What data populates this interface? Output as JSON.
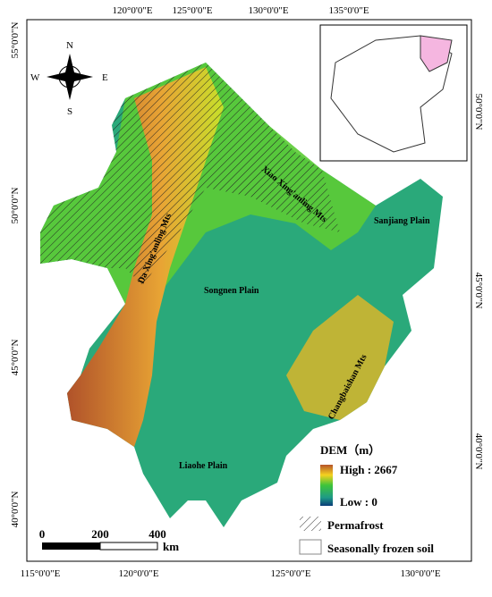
{
  "map": {
    "top_lon_labels": [
      "120°0'0\"E",
      "125°0'0\"E",
      "130°0'0\"E",
      "135°0'0\"E"
    ],
    "bottom_lon_labels": [
      "115°0'0\"E",
      "120°0'0\"E",
      "125°0'0\"E",
      "130°0'0\"E"
    ],
    "left_lat_labels": [
      "55°0'0\"N",
      "50°0'0\"N",
      "45°0'0\"N",
      "40°0'0\"N"
    ],
    "right_lat_labels": [
      "50°0'0\"N",
      "45°0'0\"N",
      "40°0'0\"N"
    ],
    "compass": {
      "n": "N",
      "s": "S",
      "e": "E",
      "w": "W"
    },
    "regions": [
      "Da Xing'anling Mts",
      "Xiao Xing'anling Mts",
      "Sanjiang Plain",
      "Songnen Plain",
      "Changbaishan Mts",
      "Liaohe Plain"
    ],
    "legend": {
      "title": "DEM（m）",
      "high": "High : 2667",
      "low": "Low : 0",
      "permafrost": "Permafrost",
      "seasonal": "Seasonally frozen soil"
    },
    "scale": {
      "ticks": [
        "0",
        "200",
        "400"
      ],
      "unit": "km"
    }
  }
}
